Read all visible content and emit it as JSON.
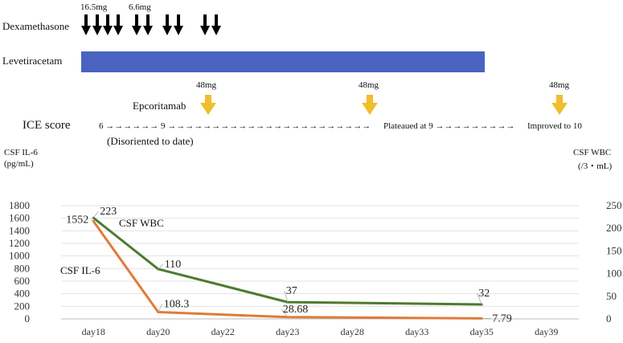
{
  "timeline": {
    "dexamethasone": {
      "label": "Dexamethasone",
      "dose_labels": [
        "16.5mg",
        "6.6mg"
      ],
      "arrow_groups": [
        4,
        2,
        2,
        2
      ],
      "arrow_color": "#000000"
    },
    "levetiracetam": {
      "label": "Levetiracetam",
      "bar_color": "#4A62C0"
    },
    "epcoritamab": {
      "label": "Epcoritamab",
      "doses": [
        "48mg",
        "48mg",
        "48mg"
      ],
      "arrow_color": "#F0BE2C"
    },
    "ice_score": {
      "label": "ICE score",
      "segments": [
        "6 →→→→→→ 9 →→→→→→→→→→→→→→→→→→→→→→→",
        "Plateaued at 9 →→→→→→→→→",
        "Improved to 10"
      ],
      "note": "(Disoriented to date)"
    }
  },
  "axes": {
    "left_title_line1": "CSF IL-6",
    "left_title_line2": "(pg/mL)",
    "right_title_line1": "CSF WBC",
    "right_title_line2": "(/3・mL)"
  },
  "chart_data": {
    "type": "line",
    "categories": [
      "day18",
      "day20",
      "day22",
      "day23",
      "day28",
      "day33",
      "day35",
      "day39"
    ],
    "y_left": {
      "ticks": [
        0,
        200,
        400,
        600,
        800,
        1000,
        1200,
        1400,
        1600,
        1800
      ],
      "ylim": [
        0,
        1800
      ]
    },
    "y_right": {
      "ticks": [
        0,
        50,
        100,
        150,
        200,
        250
      ],
      "ylim": [
        0,
        250
      ]
    },
    "grid": true,
    "series": [
      {
        "name": "CSF IL-6",
        "axis": "left",
        "color": "#E07B39",
        "points": [
          {
            "category": "day18",
            "value": 1552,
            "label": "1552"
          },
          {
            "category": "day20",
            "value": 108.3,
            "label": "108.3"
          },
          {
            "category": "day23",
            "value": 28.68,
            "label": "28.68"
          },
          {
            "category": "day35",
            "value": 7.79,
            "label": "7.79"
          }
        ]
      },
      {
        "name": "CSF WBC",
        "axis": "right",
        "color": "#4E7A2F",
        "points": [
          {
            "category": "day18",
            "value": 223,
            "label": "223"
          },
          {
            "category": "day20",
            "value": 110,
            "label": "110"
          },
          {
            "category": "day23",
            "value": 37,
            "label": "37"
          },
          {
            "category": "day35",
            "value": 32,
            "label": "32"
          }
        ]
      }
    ]
  }
}
